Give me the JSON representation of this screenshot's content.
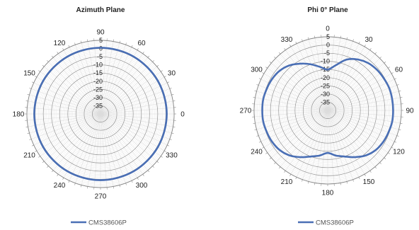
{
  "chart_data": [
    {
      "type": "polar-line",
      "title": "Azimuth Plane",
      "angle_labels": [
        "90",
        "60",
        "30",
        "0",
        "330",
        "300",
        "270",
        "240",
        "210",
        "180",
        "150",
        "120"
      ],
      "radial_ticks": [
        5,
        0,
        -5,
        -10,
        -15,
        -20,
        -25,
        -30,
        -35
      ],
      "rlim": [
        -40,
        5
      ],
      "grid": true,
      "legend_position": "bottom",
      "series": [
        {
          "name": "CMS38606P",
          "color": "#4a6fb5",
          "angles": [
            90,
            60,
            30,
            0,
            330,
            300,
            270,
            240,
            210,
            180,
            150,
            120
          ],
          "values": [
            0.5,
            0.5,
            0.5,
            0.5,
            0.5,
            0.5,
            0.5,
            0.5,
            0.5,
            0.5,
            0.5,
            0.5
          ]
        }
      ]
    },
    {
      "type": "polar-line",
      "title": "Phi 0° Plane",
      "angle_labels": [
        "0",
        "30",
        "60",
        "90",
        "120",
        "150",
        "180",
        "210",
        "240",
        "270",
        "300",
        "330"
      ],
      "radial_ticks": [
        5,
        0,
        -5,
        -10,
        -15,
        -20,
        -25,
        -30,
        -35
      ],
      "rlim": [
        -40,
        5
      ],
      "grid": true,
      "legend_position": "bottom",
      "series": [
        {
          "name": "CMS38606P",
          "color": "#4a6fb5",
          "angles": [
            0,
            10,
            20,
            30,
            40,
            50,
            60,
            70,
            80,
            90,
            100,
            110,
            120,
            130,
            140,
            150,
            160,
            170,
            180,
            190,
            200,
            210,
            220,
            230,
            240,
            250,
            260,
            270,
            280,
            290,
            300,
            310,
            320,
            330,
            340,
            350
          ],
          "values": [
            -15,
            -12,
            -7,
            -4,
            -2,
            -1,
            -0.5,
            0,
            0,
            0,
            0,
            -0.5,
            -1,
            -2,
            -4,
            -7,
            -10,
            -12,
            -14,
            -12,
            -10,
            -7,
            -4,
            -2,
            -1,
            -0.5,
            0,
            0,
            0,
            -0.5,
            -1,
            -2,
            -4,
            -7,
            -10,
            -13
          ]
        }
      ]
    }
  ]
}
